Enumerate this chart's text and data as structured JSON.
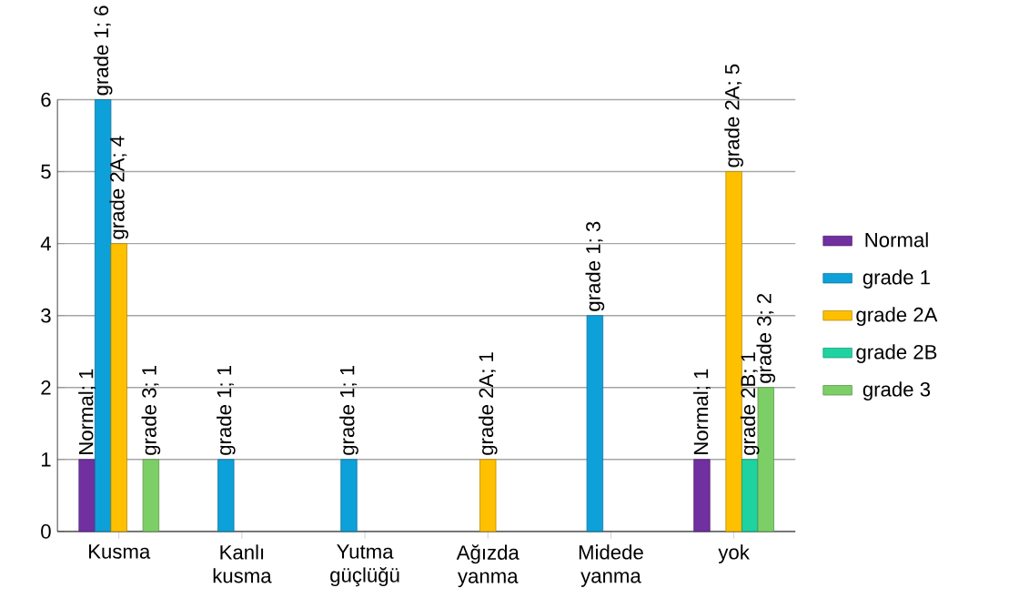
{
  "chart_data": {
    "type": "bar",
    "categories": [
      "Kusma",
      "Kanlı kusma",
      "Yutma güçlüğü",
      "Ağızda yanma",
      "Midede yanma",
      "yok"
    ],
    "series": [
      {
        "name": "Normal",
        "color": "#7030a0",
        "values": [
          1,
          null,
          null,
          null,
          null,
          1
        ],
        "value_labels": [
          "Normal; 1",
          null,
          null,
          null,
          null,
          "Normal; 1"
        ]
      },
      {
        "name": "grade 1",
        "color": "#0ea0d8",
        "values": [
          6,
          1,
          1,
          null,
          3,
          null
        ],
        "value_labels": [
          "grade 1; 6",
          "grade 1; 1",
          "grade 1; 1",
          null,
          "grade 1; 3",
          null
        ]
      },
      {
        "name": "grade 2A",
        "color": "#ffc000",
        "values": [
          4,
          null,
          null,
          1,
          null,
          5
        ],
        "value_labels": [
          "grade 2A; 4",
          null,
          null,
          "grade 2A; 1",
          null,
          "grade 2A; 5"
        ]
      },
      {
        "name": "grade 2B",
        "color": "#1fd3a0",
        "values": [
          null,
          null,
          null,
          null,
          null,
          1
        ],
        "value_labels": [
          null,
          null,
          null,
          null,
          null,
          "grade 2B; 1"
        ]
      },
      {
        "name": "grade 3",
        "color": "#7ccf66",
        "values": [
          1,
          null,
          null,
          null,
          null,
          2
        ],
        "value_labels": [
          "grade 3; 1",
          null,
          null,
          null,
          null,
          "grade 3; 2"
        ]
      }
    ],
    "ylim": [
      0,
      6
    ],
    "yticks": [
      0,
      1,
      2,
      3,
      4,
      5,
      6
    ],
    "grid": "y",
    "legend": "right"
  }
}
